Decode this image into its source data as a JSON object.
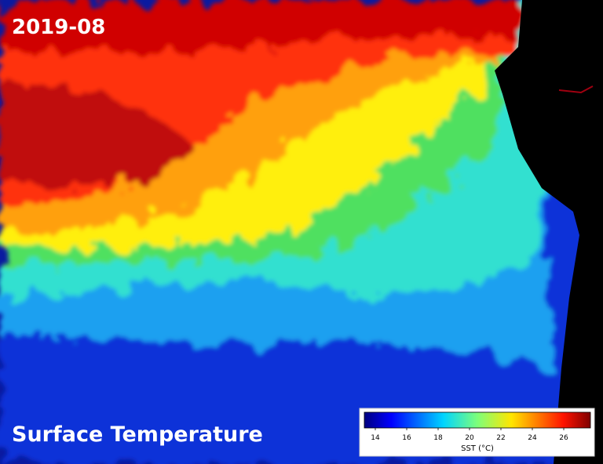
{
  "title": "2019-08",
  "caption": "Surface Temperature",
  "colorbar": {
    "label": "SST (°C)",
    "lim": [
      13.3,
      27.7
    ],
    "ticks": [
      14,
      16,
      18,
      20,
      22,
      24,
      26
    ]
  }
}
